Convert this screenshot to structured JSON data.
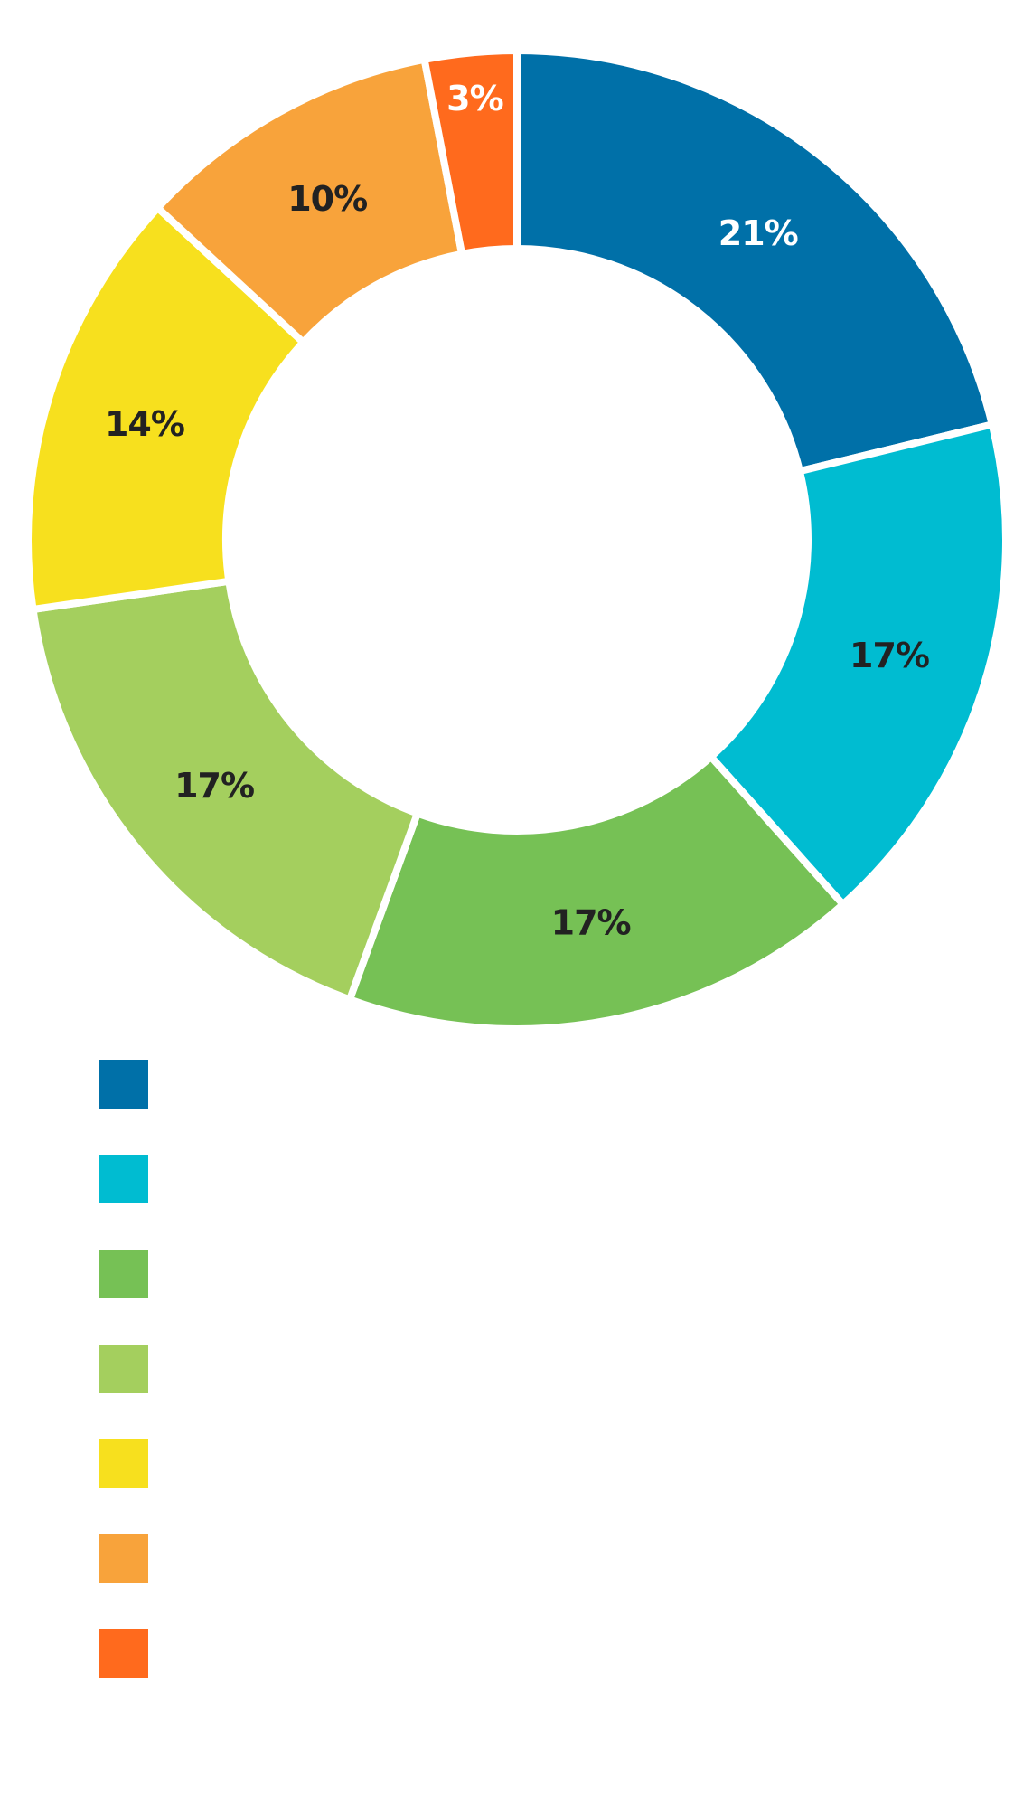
{
  "chart_data": {
    "type": "pie",
    "style": "donut",
    "title": "",
    "legend_position": "bottom-left",
    "slices": [
      {
        "label": "",
        "value": 21,
        "display": "21%",
        "color": "#0070A8",
        "label_color": "#FFFFFF"
      },
      {
        "label": "",
        "value": 17,
        "display": "17%",
        "color": "#00BCD1",
        "label_color": "#222222"
      },
      {
        "label": "",
        "value": 17,
        "display": "17%",
        "color": "#76C155",
        "label_color": "#222222"
      },
      {
        "label": "",
        "value": 17,
        "display": "17%",
        "color": "#A4CF5E",
        "label_color": "#222222"
      },
      {
        "label": "",
        "value": 14,
        "display": "14%",
        "color": "#F7E01E",
        "label_color": "#222222"
      },
      {
        "label": "",
        "value": 10,
        "display": "10%",
        "color": "#F8A33B",
        "label_color": "#222222"
      },
      {
        "label": "",
        "value": 3,
        "display": "3%",
        "color": "#FF6A1D",
        "label_color": "#FFFFFF"
      }
    ]
  }
}
